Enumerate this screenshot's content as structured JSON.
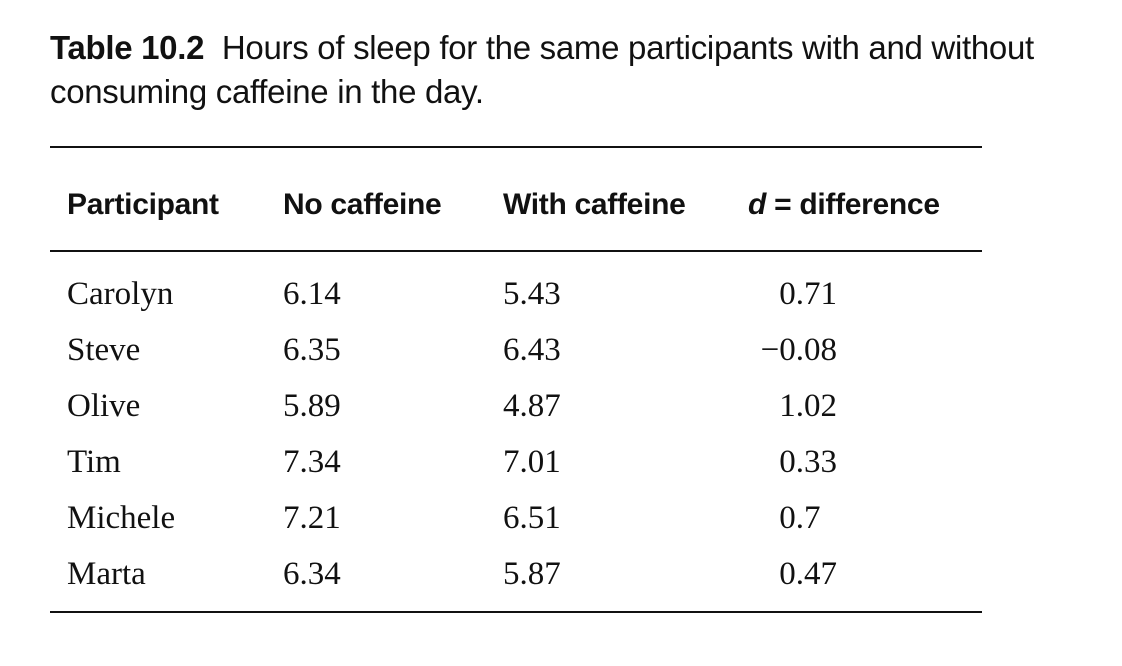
{
  "caption": {
    "label": "Table 10.2",
    "text": "Hours of sleep for the same participants with and without consuming caffeine in the day."
  },
  "table": {
    "headers": {
      "participant": "Participant",
      "no_caffeine": "No caffeine",
      "with_caffeine": "With caffeine",
      "difference_var": "d",
      "difference_rest": " = difference"
    },
    "rows": [
      {
        "name": "Carolyn",
        "no": "6.14",
        "with": "5.43",
        "diff": "0.71"
      },
      {
        "name": "Steve",
        "no": "6.35",
        "with": "6.43",
        "diff": "−0.08"
      },
      {
        "name": "Olive",
        "no": "5.89",
        "with": "4.87",
        "diff": "1.02"
      },
      {
        "name": "Tim",
        "no": "7.34",
        "with": "7.01",
        "diff": "0.33"
      },
      {
        "name": "Michele",
        "no": "7.21",
        "with": "6.51",
        "diff": "0.7 "
      },
      {
        "name": "Marta",
        "no": "6.34",
        "with": "5.87",
        "diff": "0.47"
      }
    ]
  }
}
